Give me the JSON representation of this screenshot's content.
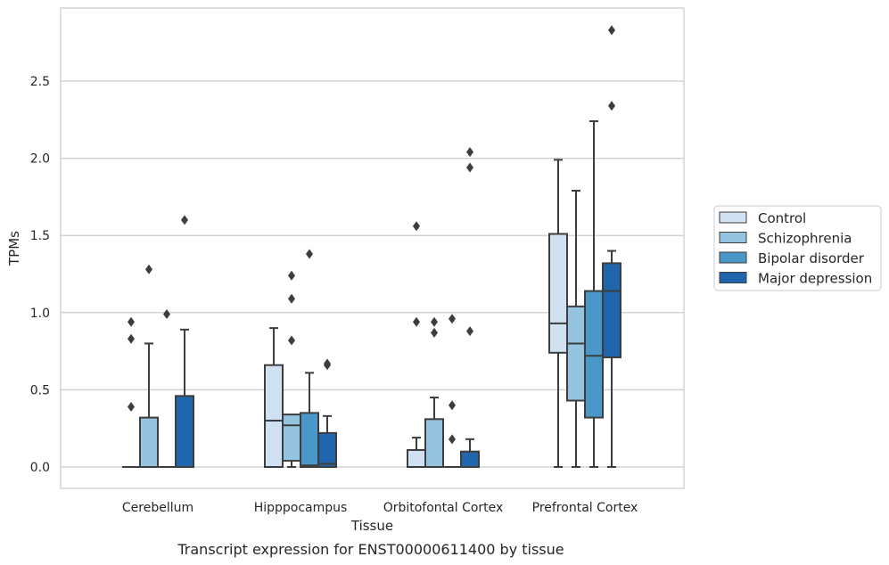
{
  "caption": "Transcript expression for ENST00000611400 by tissue",
  "chart_data": {
    "type": "box",
    "xlabel": "Tissue",
    "ylabel": "TPMs",
    "ylim": [
      -0.14,
      2.98
    ],
    "yticks": [
      "0.0",
      "0.5",
      "1.0",
      "1.5",
      "2.0",
      "2.5"
    ],
    "ytick_values": [
      0.0,
      0.5,
      1.0,
      1.5,
      2.0,
      2.5
    ],
    "grid": "horizontal",
    "legend_position": "right",
    "categories": [
      "Cerebellum",
      "Hipppocampus",
      "Orbitofontal Cortex",
      "Prefrontal Cortex"
    ],
    "series": [
      {
        "name": "Control",
        "color": "#d0e1f2",
        "boxes": [
          {
            "q1": 0.0,
            "median": 0.0,
            "q3": 0.0,
            "whisker_low": 0.0,
            "whisker_high": 0.0,
            "outliers": [
              0.94,
              0.83,
              0.39
            ]
          },
          {
            "q1": 0.0,
            "median": 0.3,
            "q3": 0.66,
            "whisker_low": 0.0,
            "whisker_high": 0.9,
            "outliers": []
          },
          {
            "q1": 0.0,
            "median": 0.0,
            "q3": 0.11,
            "whisker_low": 0.0,
            "whisker_high": 0.19,
            "outliers": [
              1.56,
              0.94
            ]
          },
          {
            "q1": 0.74,
            "median": 0.93,
            "q3": 1.51,
            "whisker_low": 0.0,
            "whisker_high": 1.99,
            "outliers": []
          }
        ]
      },
      {
        "name": "Schizophrenia",
        "color": "#94c4df",
        "boxes": [
          {
            "q1": 0.0,
            "median": 0.0,
            "q3": 0.32,
            "whisker_low": 0.0,
            "whisker_high": 0.8,
            "outliers": [
              1.28
            ]
          },
          {
            "q1": 0.04,
            "median": 0.27,
            "q3": 0.34,
            "whisker_low": 0.0,
            "whisker_high": 0.34,
            "outliers": [
              1.24,
              1.09,
              0.82
            ]
          },
          {
            "q1": 0.0,
            "median": 0.0,
            "q3": 0.31,
            "whisker_low": 0.0,
            "whisker_high": 0.45,
            "outliers": [
              0.94,
              0.87
            ]
          },
          {
            "q1": 0.43,
            "median": 0.8,
            "q3": 1.04,
            "whisker_low": 0.0,
            "whisker_high": 1.79,
            "outliers": []
          }
        ]
      },
      {
        "name": "Bipolar disorder",
        "color": "#4a98c9",
        "boxes": [
          {
            "q1": 0.0,
            "median": 0.0,
            "q3": 0.0,
            "whisker_low": 0.0,
            "whisker_high": 0.0,
            "outliers": [
              0.99
            ]
          },
          {
            "q1": 0.0,
            "median": 0.01,
            "q3": 0.35,
            "whisker_low": 0.0,
            "whisker_high": 0.61,
            "outliers": [
              1.38
            ]
          },
          {
            "q1": 0.0,
            "median": 0.0,
            "q3": 0.0,
            "whisker_low": 0.0,
            "whisker_high": 0.0,
            "outliers": [
              0.96,
              0.4,
              0.18
            ]
          },
          {
            "q1": 0.32,
            "median": 0.72,
            "q3": 1.14,
            "whisker_low": 0.0,
            "whisker_high": 2.24,
            "outliers": []
          }
        ]
      },
      {
        "name": "Major depression",
        "color": "#2165ac",
        "boxes": [
          {
            "q1": 0.0,
            "median": 0.0,
            "q3": 0.46,
            "whisker_low": 0.0,
            "whisker_high": 0.89,
            "outliers": [
              1.6
            ]
          },
          {
            "q1": 0.0,
            "median": 0.02,
            "q3": 0.22,
            "whisker_low": 0.0,
            "whisker_high": 0.33,
            "outliers": [
              0.67,
              0.66
            ]
          },
          {
            "q1": 0.0,
            "median": 0.0,
            "q3": 0.1,
            "whisker_low": 0.0,
            "whisker_high": 0.18,
            "outliers": [
              2.04,
              1.94,
              0.88
            ]
          },
          {
            "q1": 0.71,
            "median": 1.14,
            "q3": 1.32,
            "whisker_low": 0.0,
            "whisker_high": 1.4,
            "outliers": [
              2.83,
              2.34
            ]
          }
        ]
      }
    ]
  }
}
